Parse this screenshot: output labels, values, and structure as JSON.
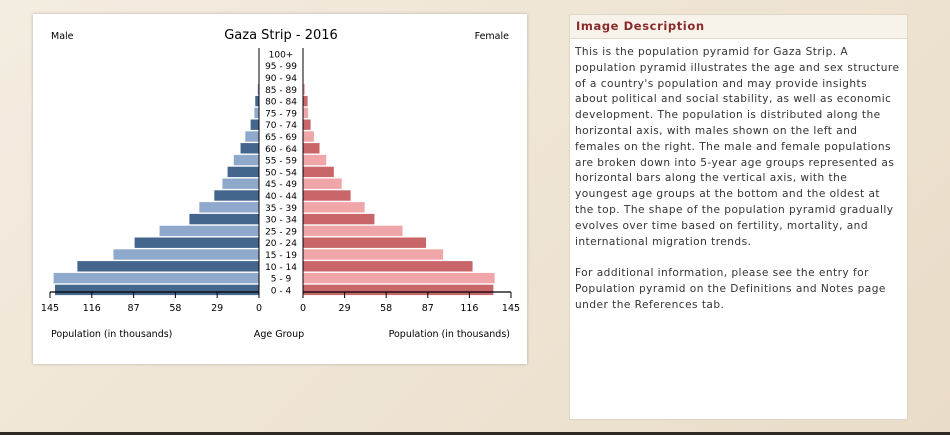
{
  "chart_data": {
    "type": "population-pyramid",
    "title": "Gaza Strip - 2016",
    "left_label": "Male",
    "right_label": "Female",
    "xlabel_left": "Population (in thousands)",
    "xlabel_center": "Age Group",
    "xlabel_right": "Population (in thousands)",
    "xlim": [
      0,
      145
    ],
    "x_ticks_left": [
      "145",
      "116",
      "87",
      "58",
      "29",
      "0"
    ],
    "x_ticks_right": [
      "0",
      "29",
      "58",
      "87",
      "116",
      "145"
    ],
    "age_groups": [
      "100+",
      "95 - 99",
      "90 - 94",
      "85 - 89",
      "80 - 84",
      "75 - 79",
      "70 - 74",
      "65 - 69",
      "60 - 64",
      "55 - 59",
      "50 - 54",
      "45 - 49",
      "40 - 44",
      "35 - 39",
      "30 - 34",
      "25 - 29",
      "20 - 24",
      "15 - 19",
      "10 - 14",
      "5 - 9",
      "0 - 4"
    ],
    "series": [
      {
        "name": "Male",
        "values": [
          0,
          0.1,
          0.3,
          0.9,
          2.6,
          3.2,
          5.8,
          9.5,
          12.8,
          17.5,
          21.8,
          25.4,
          31.0,
          41.4,
          48.3,
          69.0,
          86.3,
          101.0,
          126.0,
          142.5,
          141.5
        ]
      },
      {
        "name": "Female",
        "values": [
          0,
          0.1,
          0.3,
          1.3,
          3.2,
          3.6,
          5.3,
          7.6,
          11.5,
          16.2,
          21.5,
          27.0,
          33.2,
          43.0,
          49.8,
          69.4,
          85.8,
          97.7,
          118.2,
          133.6,
          132.7
        ]
      }
    ],
    "colors": {
      "male_dark": "#44658c",
      "male_light": "#8fa9cd",
      "female_dark": "#c9666a",
      "female_light": "#f0a6a8"
    }
  },
  "description": {
    "header": "Image Description",
    "paragraphs": [
      "This is the population pyramid for Gaza Strip. A population pyramid illustrates the age and sex structure of a country's population and may provide insights about political and social stability, as well as economic development. The population is distributed along the horizontal axis, with males shown on the left and females on the right. The male and female populations are broken down into 5-year age groups represented as horizontal bars along the vertical axis, with the youngest age groups at the bottom and the oldest at the top. The shape of the population pyramid gradually evolves over time based on fertility, mortality, and international migration trends.",
      "For additional information, please see the entry for Population pyramid on the Definitions and Notes page under the References tab."
    ]
  }
}
